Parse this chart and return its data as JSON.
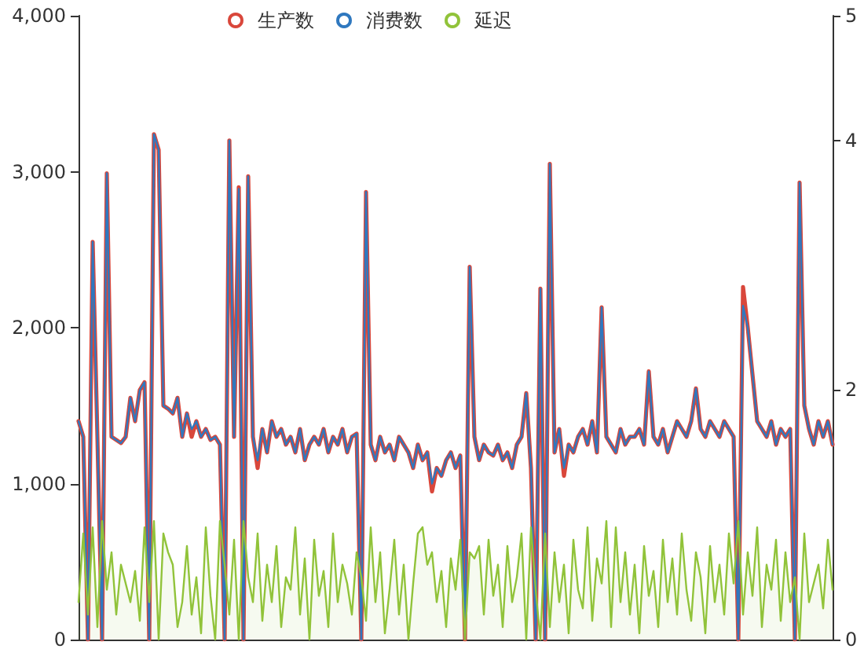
{
  "chart_data": {
    "type": "line",
    "legend": "top",
    "marker": "none",
    "grid": false,
    "categories": [
      null,
      null,
      null,
      null,
      null,
      null,
      null,
      null,
      null,
      null,
      null,
      null,
      null,
      null,
      null,
      null,
      null,
      null,
      null,
      null,
      null,
      null,
      null,
      null,
      null,
      null,
      null,
      null,
      null,
      null,
      null,
      null,
      null,
      null,
      null,
      null,
      null,
      null,
      null,
      null,
      null,
      null,
      null,
      null,
      null,
      null,
      null,
      null,
      null,
      null,
      null,
      null,
      null,
      null,
      null,
      null,
      null,
      null,
      null,
      null,
      null,
      null,
      null,
      null,
      null,
      null,
      null,
      null,
      null,
      null,
      null,
      null,
      null,
      null,
      null,
      null,
      null,
      null,
      null,
      null,
      null,
      null,
      null,
      null,
      null,
      null,
      null,
      null,
      null,
      null,
      null,
      null,
      null,
      null,
      null,
      null,
      null,
      null,
      null,
      null,
      null,
      null,
      null,
      null,
      null,
      null,
      null,
      null,
      null,
      null,
      null,
      null,
      null,
      null,
      null,
      null,
      null,
      null,
      null,
      null,
      null,
      null,
      null,
      null,
      null,
      null,
      null,
      null,
      null,
      null,
      null,
      null,
      null,
      null,
      null,
      null,
      null,
      null,
      null,
      null,
      null,
      null,
      null,
      null,
      null,
      null,
      null,
      null,
      null,
      null,
      null,
      null,
      null,
      null,
      null,
      null,
      null,
      null,
      null,
      null,
      null
    ],
    "ylim": [
      0,
      4000
    ],
    "yticks": [
      0,
      {
        "value": 1000,
        "label": "1,000"
      },
      {
        "value": 2000,
        "label": "2,000"
      },
      {
        "value": 3000,
        "label": "3,000"
      },
      {
        "value": 4000,
        "label": "4,000"
      }
    ],
    "y2lim": [
      0,
      5
    ],
    "y2ticks": [
      0,
      2,
      4,
      5
    ],
    "series": [
      {
        "name": "生产数",
        "color": "#d9473b",
        "values": [
          1400,
          1300,
          0,
          2550,
          1300,
          0,
          2990,
          1300,
          1280,
          1260,
          1300,
          1550,
          1400,
          1600,
          1650,
          0,
          3240,
          3140,
          1500,
          1480,
          1450,
          1550,
          1300,
          1450,
          1300,
          1400,
          1300,
          1350,
          1280,
          1300,
          1250,
          0,
          3200,
          1300,
          2900,
          0,
          2970,
          1300,
          1100,
          1350,
          1200,
          1400,
          1300,
          1350,
          1250,
          1300,
          1200,
          1350,
          1150,
          1250,
          1300,
          1250,
          1350,
          1200,
          1300,
          1250,
          1350,
          1200,
          1300,
          1320,
          0,
          2870,
          1250,
          1150,
          1300,
          1200,
          1250,
          1150,
          1300,
          1250,
          1200,
          1100,
          1250,
          1150,
          1200,
          950,
          1100,
          1050,
          1150,
          1200,
          1100,
          1180,
          0,
          2390,
          1300,
          1150,
          1250,
          1200,
          1180,
          1250,
          1150,
          1200,
          1100,
          1250,
          1300,
          1580,
          1100,
          0,
          2250,
          0,
          3050,
          1200,
          1350,
          1050,
          1250,
          1200,
          1300,
          1350,
          1250,
          1400,
          1200,
          2130,
          1300,
          1250,
          1200,
          1350,
          1250,
          1300,
          1300,
          1350,
          1250,
          1720,
          1300,
          1250,
          1350,
          1200,
          1300,
          1400,
          1350,
          1300,
          1400,
          1610,
          1350,
          1300,
          1400,
          1350,
          1300,
          1400,
          1350,
          1300,
          0,
          2260,
          2000,
          1700,
          1400,
          1350,
          1300,
          1400,
          1250,
          1350,
          1300,
          1350,
          0,
          2930,
          1500,
          1350,
          1250,
          1400,
          1300,
          1400,
          1250
        ]
      },
      {
        "name": "消费数",
        "color": "#2f78bf",
        "values": [
          1400,
          1300,
          0,
          2550,
          1300,
          0,
          2990,
          1300,
          1280,
          1260,
          1300,
          1550,
          1400,
          1600,
          1650,
          0,
          3240,
          3140,
          1500,
          1480,
          1450,
          1550,
          1300,
          1450,
          1350,
          1400,
          1300,
          1350,
          1280,
          1300,
          1250,
          0,
          3200,
          1300,
          2890,
          0,
          2970,
          1300,
          1150,
          1350,
          1200,
          1400,
          1300,
          1350,
          1250,
          1300,
          1200,
          1350,
          1150,
          1250,
          1300,
          1250,
          1350,
          1200,
          1300,
          1250,
          1350,
          1200,
          1300,
          1320,
          0,
          2870,
          1250,
          1150,
          1300,
          1200,
          1250,
          1150,
          1300,
          1250,
          1200,
          1100,
          1250,
          1150,
          1200,
          1000,
          1100,
          1050,
          1150,
          1200,
          1100,
          1180,
          0,
          2390,
          1300,
          1150,
          1250,
          1200,
          1180,
          1250,
          1150,
          1200,
          1100,
          1250,
          1300,
          1580,
          1100,
          0,
          2250,
          0,
          3050,
          1200,
          1350,
          1100,
          1250,
          1200,
          1300,
          1350,
          1250,
          1400,
          1200,
          2130,
          1300,
          1250,
          1200,
          1350,
          1250,
          1300,
          1300,
          1350,
          1250,
          1720,
          1300,
          1250,
          1350,
          1200,
          1300,
          1400,
          1350,
          1300,
          1400,
          1610,
          1350,
          1300,
          1400,
          1350,
          1300,
          1400,
          1350,
          1300,
          0,
          2140,
          2000,
          1700,
          1400,
          1350,
          1300,
          1400,
          1250,
          1350,
          1300,
          1350,
          0,
          2930,
          1500,
          1350,
          1250,
          1400,
          1300,
          1400,
          1250
        ]
      },
      {
        "name": "延迟",
        "type": "area",
        "axis": "y2",
        "color": "#91c33a",
        "values": [
          0.3,
          0.85,
          0.2,
          0.9,
          0.1,
          0.95,
          0.4,
          0.7,
          0.2,
          0.6,
          0.45,
          0.3,
          0.55,
          0.15,
          0.9,
          0.3,
          0.95,
          0.0,
          0.85,
          0.7,
          0.6,
          0.1,
          0.3,
          0.75,
          0.2,
          0.5,
          0.05,
          0.9,
          0.35,
          0.0,
          0.95,
          0.6,
          0.2,
          0.8,
          0.0,
          0.95,
          0.5,
          0.3,
          0.85,
          0.15,
          0.6,
          0.3,
          0.75,
          0.1,
          0.5,
          0.4,
          0.9,
          0.2,
          0.65,
          0.0,
          0.8,
          0.35,
          0.55,
          0.1,
          0.85,
          0.3,
          0.6,
          0.45,
          0.2,
          0.7,
          0.5,
          0.15,
          0.9,
          0.3,
          0.7,
          0.05,
          0.4,
          0.8,
          0.2,
          0.6,
          0.0,
          0.45,
          0.85,
          0.9,
          0.6,
          0.7,
          0.3,
          0.55,
          0.1,
          0.65,
          0.4,
          0.8,
          0.0,
          0.7,
          0.65,
          0.75,
          0.2,
          0.8,
          0.35,
          0.6,
          0.1,
          0.75,
          0.3,
          0.5,
          0.85,
          0.0,
          0.9,
          0.4,
          0.0,
          0.85,
          0.1,
          0.7,
          0.3,
          0.6,
          0.05,
          0.8,
          0.4,
          0.25,
          0.9,
          0.15,
          0.65,
          0.45,
          0.95,
          0.1,
          0.9,
          0.3,
          0.7,
          0.2,
          0.6,
          0.05,
          0.75,
          0.35,
          0.55,
          0.1,
          0.8,
          0.3,
          0.65,
          0.2,
          0.85,
          0.4,
          0.15,
          0.7,
          0.5,
          0.05,
          0.75,
          0.3,
          0.6,
          0.2,
          0.85,
          0.45,
          0.95,
          0.2,
          0.7,
          0.35,
          0.9,
          0.1,
          0.6,
          0.4,
          0.8,
          0.15,
          0.7,
          0.3,
          0.5,
          0.0,
          0.85,
          0.3,
          0.45,
          0.6,
          0.25,
          0.8,
          0.4
        ]
      }
    ]
  }
}
